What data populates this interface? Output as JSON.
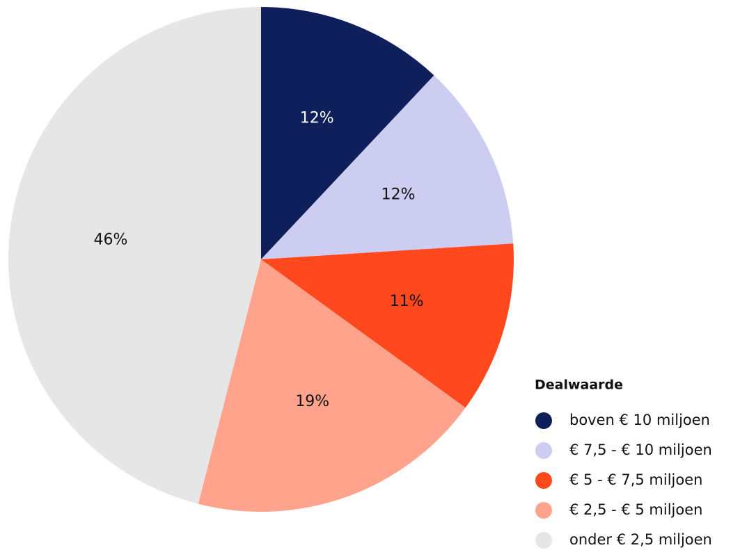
{
  "chart_data": {
    "type": "pie",
    "legend_title": "Dealwaarde",
    "categories": [
      "boven € 10 miljoen",
      "€ 7,5 - € 10 miljoen",
      "€ 5 - € 7,5 miljoen",
      "€ 2,5 - € 5 miljoen",
      "onder € 2,5 miljoen"
    ],
    "values": [
      12,
      12,
      11,
      19,
      46
    ],
    "value_labels": [
      "12%",
      "12%",
      "11%",
      "19%",
      "46%"
    ],
    "colors": [
      "#0e1f5b",
      "#cdcdf2",
      "#ff481e",
      "#ffa38d",
      "#e6e6e6"
    ],
    "legend": "bottom-right"
  }
}
